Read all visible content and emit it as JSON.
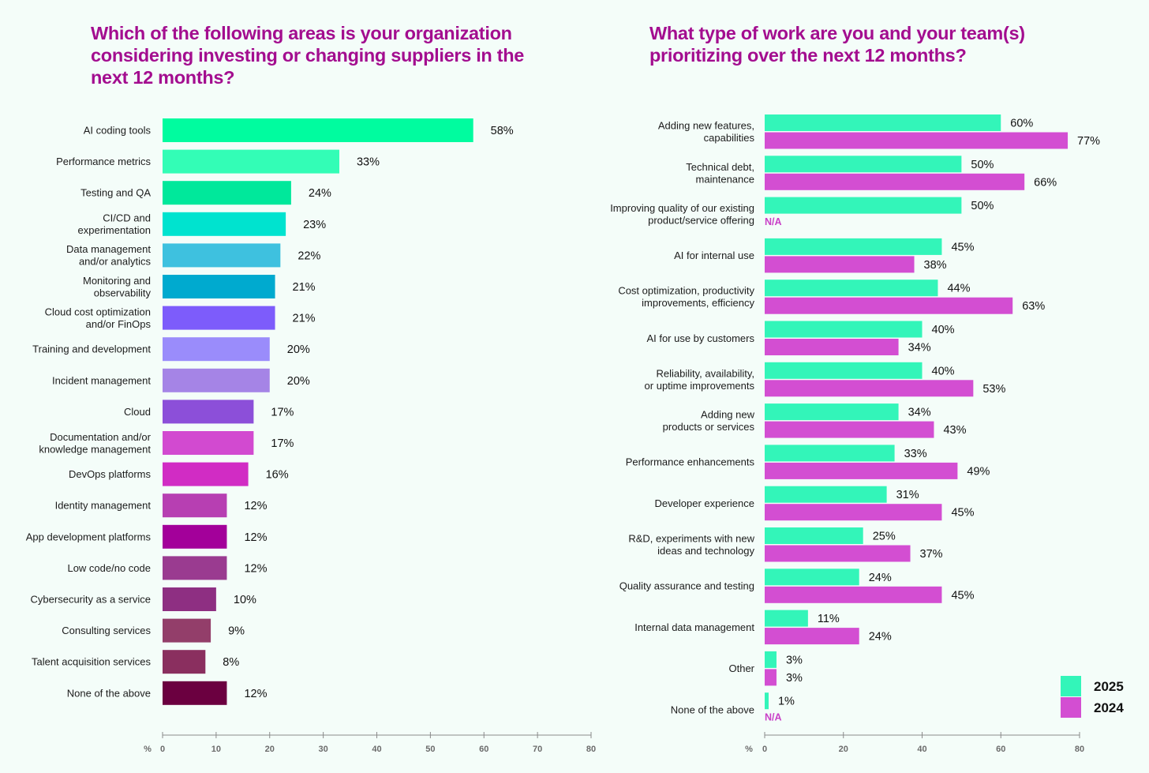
{
  "chart_data": [
    {
      "type": "bar",
      "orientation": "horizontal",
      "title": "Which of the following areas is your organization considering investing or changing suppliers in the next 12 months?",
      "axis_unit": "%",
      "xlim": [
        0,
        80
      ],
      "ticks": [
        0,
        10,
        20,
        30,
        40,
        50,
        60,
        70,
        80
      ],
      "categories": [
        "AI coding tools",
        "Performance metrics",
        "Testing and QA",
        "CI/CD and\nexperimentation",
        "Data management\nand/or analytics",
        "Monitoring and\nobservability",
        "Cloud cost optimization\nand/or FinOps",
        "Training and development",
        "Incident management",
        "Cloud",
        "Documentation and/or\nknowledge management",
        "DevOps platforms",
        "Identity management",
        "App development platforms",
        "Low code/no code",
        "Cybersecurity as a service",
        "Consulting services",
        "Talent acquisition services",
        "None of the above"
      ],
      "values": [
        58,
        33,
        24,
        23,
        22,
        21,
        21,
        20,
        20,
        17,
        17,
        16,
        12,
        12,
        12,
        10,
        9,
        8,
        12
      ],
      "value_labels": [
        "58%",
        "33%",
        "24%",
        "23%",
        "22%",
        "21%",
        "21%",
        "20%",
        "20%",
        "17%",
        "17%",
        "16%",
        "12%",
        "12%",
        "12%",
        "10%",
        "9%",
        "8%",
        "12%"
      ],
      "colors": [
        "#00fc9f",
        "#33fdb6",
        "#00e89b",
        "#00e3cf",
        "#3ec1df",
        "#00aacf",
        "#7d5cfb",
        "#9a8cfb",
        "#a584e6",
        "#8c4fd9",
        "#d24ad0",
        "#d12cc4",
        "#b73fb2",
        "#a3009a",
        "#9a3b90",
        "#8e2f82",
        "#933e6a",
        "#8a2f5f",
        "#6b0040"
      ]
    },
    {
      "type": "bar",
      "orientation": "horizontal",
      "title": "What type of work are you and your team(s) prioritizing over the next 12 months?",
      "axis_unit": "%",
      "xlim": [
        0,
        80
      ],
      "ticks": [
        0,
        20,
        40,
        60,
        80
      ],
      "legend_position": "bottom-right",
      "categories": [
        "Adding new features,\ncapabilities",
        "Technical debt,\nmaintenance",
        "Improving quality of our existing\nproduct/service offering",
        "AI for internal use",
        "Cost optimization, productivity\nimprovements, efficiency",
        "AI for use by customers",
        "Reliability, availability,\nor uptime improvements",
        "Adding new\nproducts or services",
        "Performance enhancements",
        "Developer experience",
        "R&D, experiments with new\nideas and technology",
        "Quality assurance and testing",
        "Internal data management",
        "Other",
        "None of the above"
      ],
      "series": [
        {
          "name": "2025",
          "color": "#33f5b9",
          "values": [
            60,
            50,
            50,
            45,
            44,
            40,
            40,
            34,
            33,
            31,
            25,
            24,
            11,
            3,
            1
          ],
          "labels": [
            "60%",
            "50%",
            "50%",
            "45%",
            "44%",
            "40%",
            "40%",
            "34%",
            "33%",
            "31%",
            "25%",
            "24%",
            "11%",
            "3%",
            "1%"
          ]
        },
        {
          "name": "2024",
          "color": "#d34ed2",
          "values": [
            77,
            66,
            null,
            38,
            63,
            34,
            53,
            43,
            49,
            45,
            37,
            45,
            24,
            3,
            null
          ],
          "labels": [
            "77%",
            "66%",
            "N/A",
            "38%",
            "63%",
            "34%",
            "53%",
            "43%",
            "49%",
            "45%",
            "37%",
            "45%",
            "24%",
            "3%",
            "N/A"
          ]
        }
      ]
    }
  ]
}
